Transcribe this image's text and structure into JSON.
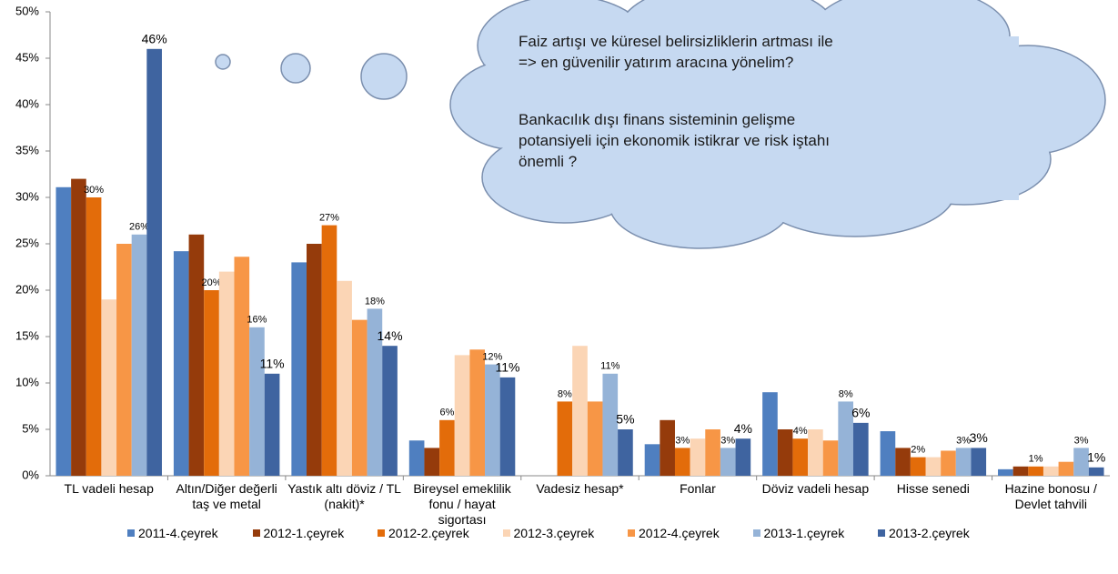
{
  "chart_data": {
    "type": "bar",
    "categories": [
      "TL vadeli hesap",
      "Altın/Diğer değerli taş ve metal",
      "Yastık altı döviz / TL (nakit)*",
      "Bireysel emeklilik fonu / hayat sigortası",
      "Vadesiz hesap*",
      "Fonlar",
      "Döviz vadeli hesap",
      "Hisse senedi",
      "Hazine bonosu / Devlet tahvili"
    ],
    "series": [
      {
        "name": "2011-4.çeyrek",
        "color": "#4f7fc0",
        "values": [
          31.1,
          24.2,
          23,
          3.8,
          null,
          3.4,
          9,
          4.8,
          0.7
        ]
      },
      {
        "name": "2012-1.çeyrek",
        "color": "#953b0b",
        "values": [
          32,
          26,
          25,
          3,
          null,
          6,
          5,
          3,
          1
        ]
      },
      {
        "name": "2012-2.çeyrek",
        "color": "#e36c0a",
        "values": [
          30,
          20,
          27,
          6,
          8,
          3,
          4,
          2,
          1
        ],
        "value_labels": [
          "30%",
          "20%",
          "27%",
          "6%",
          "8%",
          "3%",
          "4%",
          "2%",
          "1%"
        ]
      },
      {
        "name": "2012-3.çeyrek",
        "color": "#fbd5b5",
        "values": [
          19,
          22,
          21,
          13,
          14,
          4,
          5,
          2,
          1
        ]
      },
      {
        "name": "2012-4.çeyrek",
        "color": "#f79646",
        "values": [
          25,
          23.6,
          16.8,
          13.6,
          8,
          5,
          3.8,
          2.7,
          1.5
        ]
      },
      {
        "name": "2013-1.çeyrek",
        "color": "#95b3d7",
        "values": [
          26,
          16,
          18,
          12,
          11,
          3,
          8,
          3,
          3
        ],
        "value_labels": [
          "26%",
          "16%",
          "18%",
          "12%",
          "11%",
          "3%",
          "8%",
          "3%",
          "3%"
        ]
      },
      {
        "name": "2013-2.çeyrek",
        "color": "#3f64a0",
        "values": [
          46,
          11,
          14,
          10.6,
          5,
          4,
          5.7,
          3,
          0.9
        ],
        "value_labels": [
          "46%",
          "11%",
          "14%",
          "11%",
          "5%",
          "4%",
          "6%",
          "3%",
          "1%"
        ]
      }
    ],
    "ylim": [
      0,
      50
    ],
    "yticks": [
      {
        "value": 0,
        "label": "0%"
      },
      {
        "value": 5,
        "label": "5%"
      },
      {
        "value": 10,
        "label": "10%"
      },
      {
        "value": 15,
        "label": "15%"
      },
      {
        "value": 20,
        "label": "20%"
      },
      {
        "value": 25,
        "label": "25%"
      },
      {
        "value": 30,
        "label": "30%"
      },
      {
        "value": 35,
        "label": "35%"
      },
      {
        "value": 40,
        "label": "40%"
      },
      {
        "value": 45,
        "label": "45%"
      },
      {
        "value": 50,
        "label": "50%"
      }
    ],
    "grid": false,
    "legend": "bottom",
    "annotations": [
      "Faiz artışı ve küresel belirsizliklerin artması ile => en güvenilir yatırım aracına yönelim?",
      "Bankacılık dışı finans sisteminin gelişme potansiyeli için ekonomik istikrar ve risk iştahı önemli ?"
    ]
  }
}
